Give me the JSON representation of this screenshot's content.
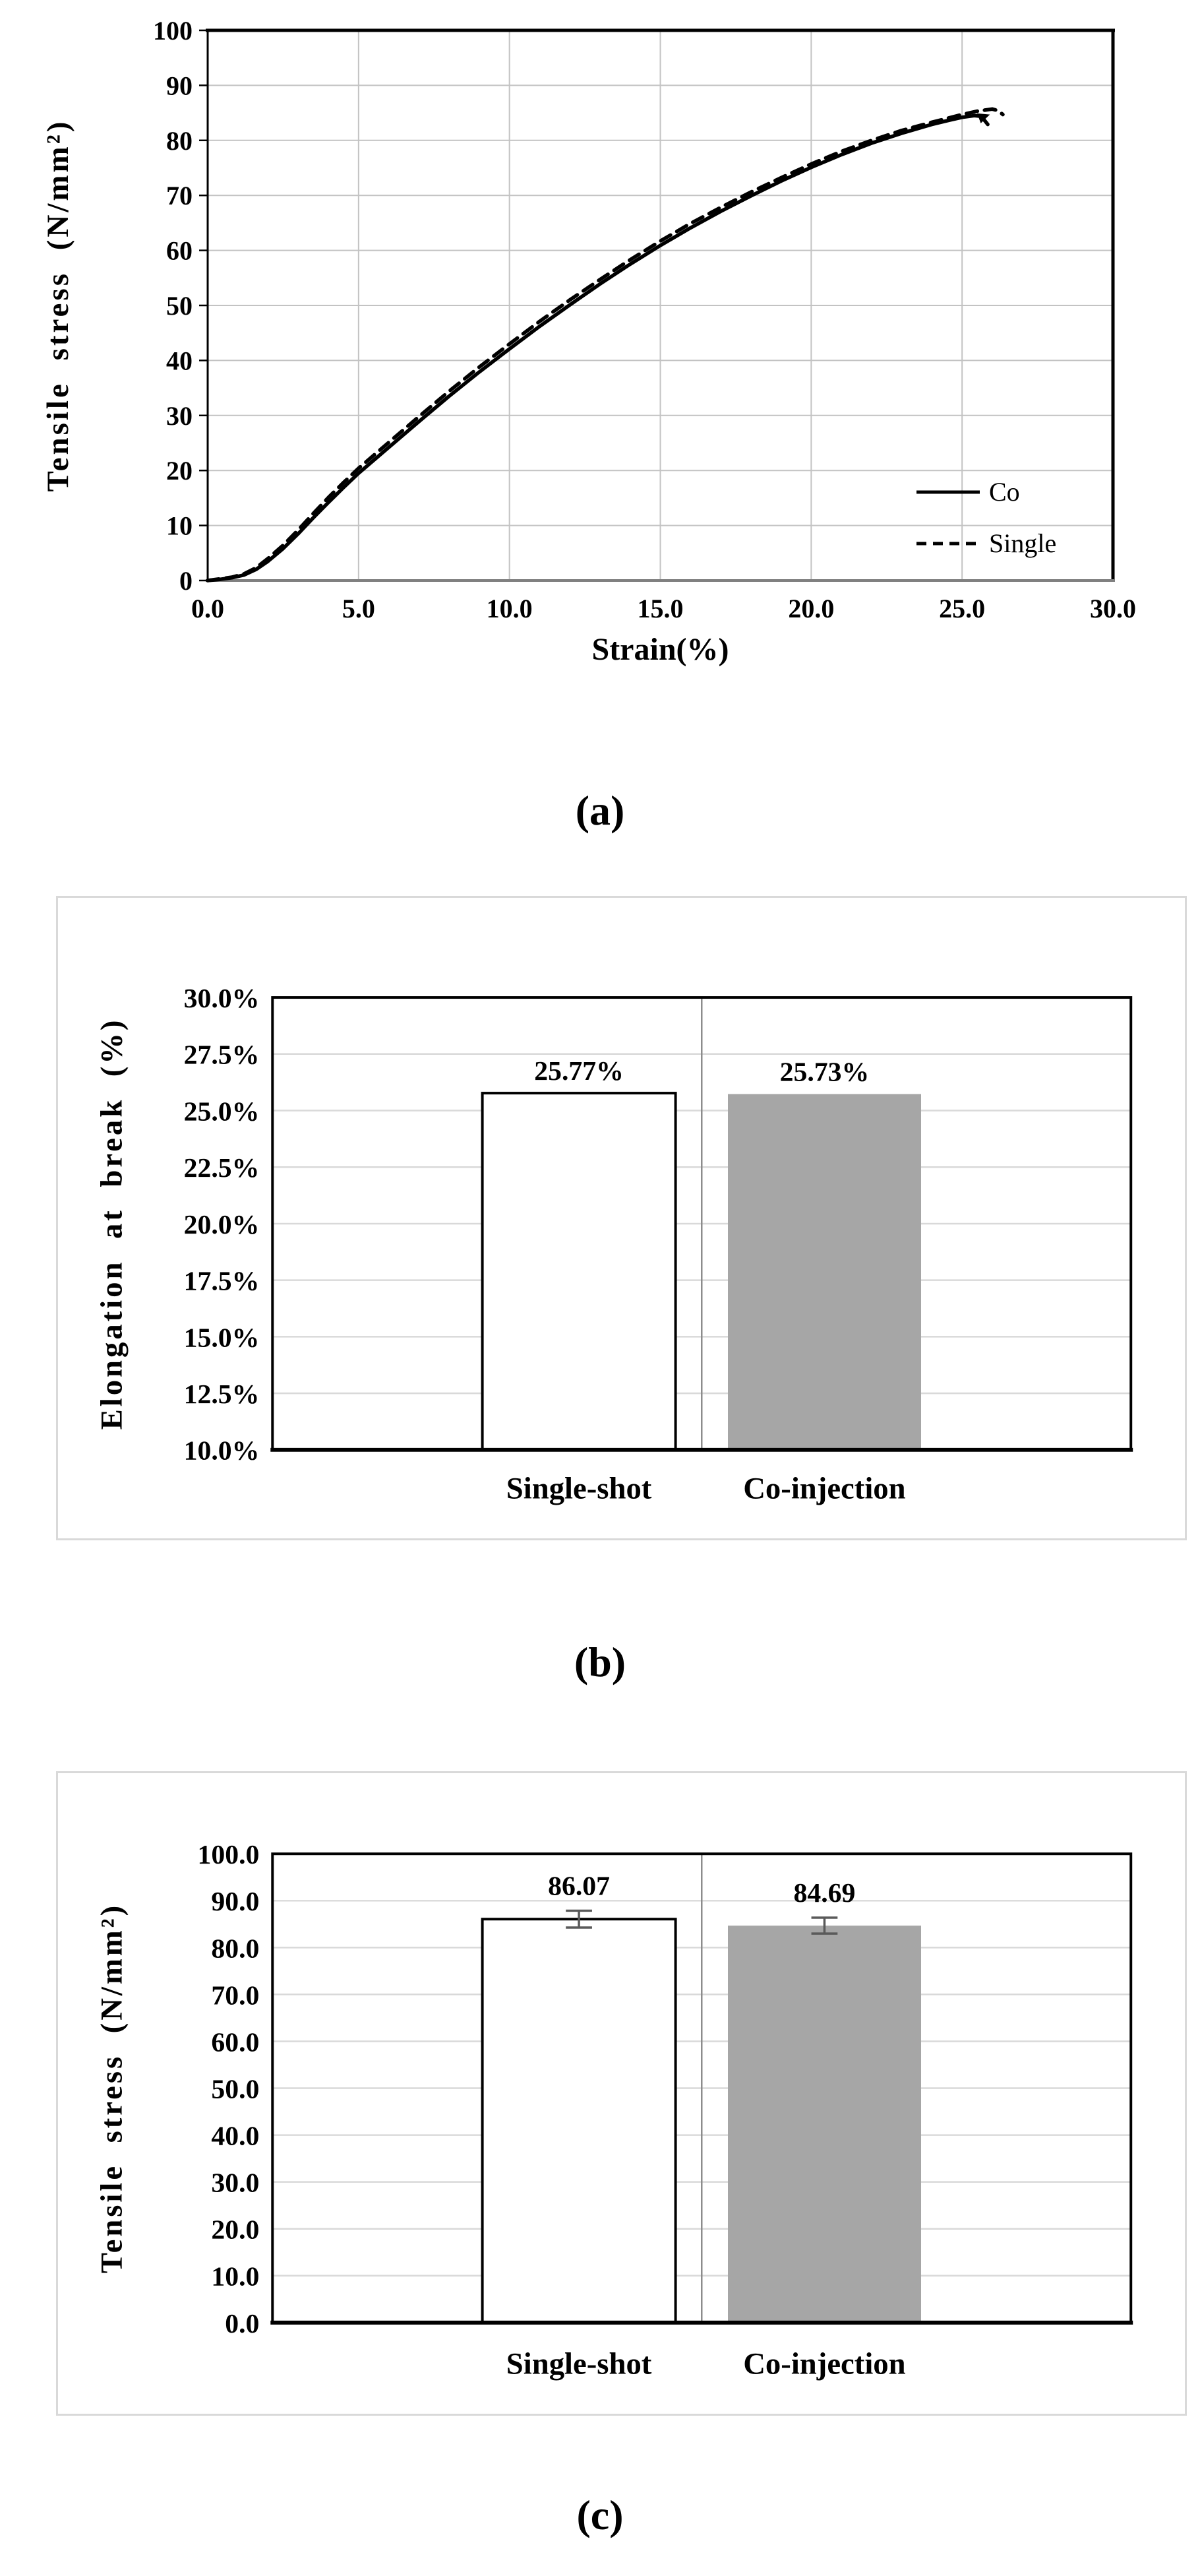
{
  "figure": {
    "captions": {
      "a": "(a)",
      "b": "(b)",
      "c": "(c)"
    }
  },
  "colors": {
    "bar_white": "#ffffff",
    "bar_gray": "#a6a6a6",
    "axis_black": "#000000",
    "grid_light_a": "#c3c3c3",
    "grid_light_bc": "#d9d9d9",
    "grid_mid": "#8c8c8c",
    "baseline_gray": "#808080",
    "error_bar": "#5a5a5a",
    "panel_border": "#d9d9d9",
    "text": "#000000"
  },
  "chart_data": [
    {
      "id": "a",
      "type": "line",
      "title": "",
      "xlabel": "Strain(%)",
      "ylabel": "Tensile stress (N/mm²)",
      "xlim": [
        0,
        30
      ],
      "ylim": [
        0,
        100
      ],
      "grid": true,
      "xtick_values": [
        0,
        5,
        10,
        15,
        20,
        25,
        30
      ],
      "xtick_labels": [
        "0.0",
        "5.0",
        "10.0",
        "15.0",
        "20.0",
        "25.0",
        "30.0"
      ],
      "ytick_values": [
        0,
        10,
        20,
        30,
        40,
        50,
        60,
        70,
        80,
        90,
        100
      ],
      "ytick_labels": [
        "0",
        "10",
        "20",
        "30",
        "40",
        "50",
        "60",
        "70",
        "80",
        "90",
        "100"
      ],
      "legend": {
        "position": "inside-right",
        "entries": [
          {
            "name": "Co",
            "style": "solid"
          },
          {
            "name": "Single",
            "style": "dashed"
          }
        ]
      },
      "series": [
        {
          "name": "Co",
          "style": "solid",
          "points": [
            [
              0,
              0
            ],
            [
              0.4,
              0.2
            ],
            [
              0.8,
              0.5
            ],
            [
              1.2,
              1.0
            ],
            [
              1.6,
              2.0
            ],
            [
              2,
              3.5
            ],
            [
              2.5,
              5.8
            ],
            [
              3,
              8.5
            ],
            [
              3.5,
              11.4
            ],
            [
              4,
              14.2
            ],
            [
              4.5,
              16.9
            ],
            [
              5,
              19.5
            ],
            [
              6,
              24.2
            ],
            [
              7,
              28.9
            ],
            [
              8,
              33.5
            ],
            [
              9,
              37.9
            ],
            [
              10,
              42.1
            ],
            [
              11,
              46.2
            ],
            [
              12,
              50.1
            ],
            [
              13,
              53.9
            ],
            [
              14,
              57.5
            ],
            [
              15,
              60.9
            ],
            [
              16,
              64.1
            ],
            [
              17,
              67.1
            ],
            [
              18,
              69.9
            ],
            [
              19,
              72.6
            ],
            [
              20,
              75.1
            ],
            [
              21,
              77.4
            ],
            [
              22,
              79.5
            ],
            [
              23,
              81.3
            ],
            [
              24,
              82.9
            ],
            [
              24.6,
              83.7
            ],
            [
              25,
              84.2
            ],
            [
              25.4,
              84.5
            ],
            [
              25.6,
              84.4
            ],
            [
              25.75,
              83.6
            ],
            [
              25.85,
              82.9
            ]
          ],
          "break_marker": [
            [
              25.5,
              84.9
            ],
            [
              25.92,
              84.7
            ],
            [
              25.62,
              83.1
            ]
          ]
        },
        {
          "name": "Single",
          "style": "dashed",
          "points": [
            [
              0,
              0
            ],
            [
              0.4,
              0.3
            ],
            [
              0.8,
              0.6
            ],
            [
              1.2,
              1.2
            ],
            [
              1.6,
              2.3
            ],
            [
              2,
              4.0
            ],
            [
              2.5,
              6.4
            ],
            [
              3,
              9.2
            ],
            [
              3.5,
              12.2
            ],
            [
              4,
              15.1
            ],
            [
              4.5,
              17.8
            ],
            [
              5,
              20.4
            ],
            [
              6,
              25.1
            ],
            [
              7,
              29.8
            ],
            [
              8,
              34.4
            ],
            [
              9,
              38.8
            ],
            [
              10,
              43.0
            ],
            [
              11,
              47.1
            ],
            [
              12,
              51.0
            ],
            [
              13,
              54.7
            ],
            [
              14,
              58.3
            ],
            [
              15,
              61.7
            ],
            [
              16,
              64.9
            ],
            [
              17,
              67.8
            ],
            [
              18,
              70.6
            ],
            [
              19,
              73.2
            ],
            [
              20,
              75.7
            ],
            [
              21,
              78.0
            ],
            [
              22,
              80.0
            ],
            [
              23,
              81.8
            ],
            [
              24,
              83.3
            ],
            [
              25,
              84.7
            ],
            [
              25.5,
              85.3
            ],
            [
              26,
              85.7
            ],
            [
              26.2,
              85.4
            ],
            [
              26.35,
              84.7
            ]
          ]
        }
      ]
    },
    {
      "id": "b",
      "type": "bar",
      "title": "",
      "ylabel": "Elongation at break (%)",
      "ylim": [
        10,
        30
      ],
      "grid": true,
      "ytick_values": [
        10,
        12.5,
        15,
        17.5,
        20,
        22.5,
        25,
        27.5,
        30
      ],
      "ytick_labels": [
        "10.0%",
        "12.5%",
        "15.0%",
        "17.5%",
        "20.0%",
        "22.5%",
        "25.0%",
        "27.5%",
        "30.0%"
      ],
      "categories": [
        "Single-shot",
        "Co-injection"
      ],
      "values": [
        25.77,
        25.73
      ],
      "value_labels": [
        "25.77%",
        "25.73%"
      ],
      "bar_fills": [
        "#ffffff",
        "#a6a6a6"
      ],
      "bar_strokes": [
        "#000000",
        "none"
      ],
      "errors": [
        null,
        null
      ],
      "legend_position": "none"
    },
    {
      "id": "c",
      "type": "bar",
      "title": "",
      "ylabel": "Tensile stress (N/mm²)",
      "ylim": [
        0,
        100
      ],
      "grid": true,
      "ytick_values": [
        0,
        10,
        20,
        30,
        40,
        50,
        60,
        70,
        80,
        90,
        100
      ],
      "ytick_labels": [
        "0.0",
        "10.0",
        "20.0",
        "30.0",
        "40.0",
        "50.0",
        "60.0",
        "70.0",
        "80.0",
        "90.0",
        "100.0"
      ],
      "categories": [
        "Single-shot",
        "Co-injection"
      ],
      "values": [
        86.07,
        84.69
      ],
      "value_labels": [
        "86.07",
        "84.69"
      ],
      "bar_fills": [
        "#ffffff",
        "#a6a6a6"
      ],
      "bar_strokes": [
        "#000000",
        "none"
      ],
      "errors": [
        1.8,
        1.7
      ],
      "legend_position": "none"
    }
  ]
}
